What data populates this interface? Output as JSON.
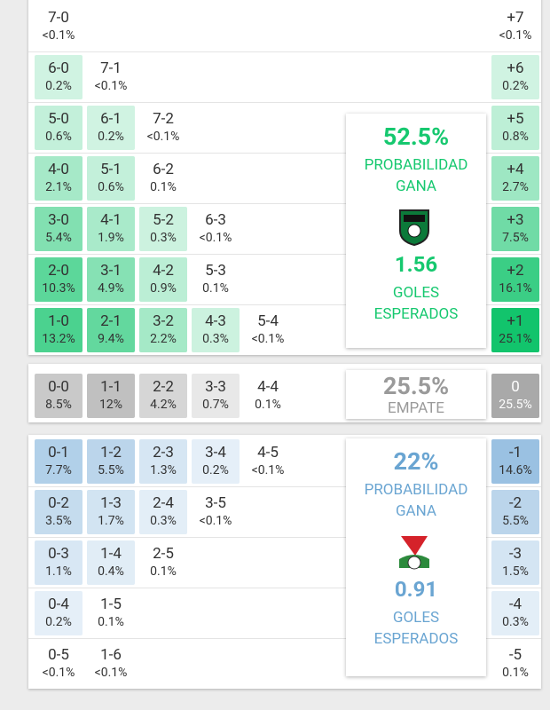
{
  "home": {
    "color": "#12c46c",
    "summary_color": "#16c86f",
    "rows": [
      {
        "cells": [
          {
            "score": "7-0",
            "prob": "<0.1%"
          }
        ],
        "margin": {
          "label": "+7",
          "prob": "<0.1%"
        }
      },
      {
        "cells": [
          {
            "score": "6-0",
            "prob": "0.2%"
          },
          {
            "score": "7-1",
            "prob": "<0.1%"
          }
        ],
        "margin": {
          "label": "+6",
          "prob": "0.2%"
        }
      },
      {
        "cells": [
          {
            "score": "5-0",
            "prob": "0.6%"
          },
          {
            "score": "6-1",
            "prob": "0.2%"
          },
          {
            "score": "7-2",
            "prob": "<0.1%"
          }
        ],
        "margin": {
          "label": "+5",
          "prob": "0.8%"
        }
      },
      {
        "cells": [
          {
            "score": "4-0",
            "prob": "2.1%"
          },
          {
            "score": "5-1",
            "prob": "0.6%"
          },
          {
            "score": "6-2",
            "prob": "0.1%"
          }
        ],
        "margin": {
          "label": "+4",
          "prob": "2.7%"
        }
      },
      {
        "cells": [
          {
            "score": "3-0",
            "prob": "5.4%"
          },
          {
            "score": "4-1",
            "prob": "1.9%"
          },
          {
            "score": "5-2",
            "prob": "0.3%"
          },
          {
            "score": "6-3",
            "prob": "<0.1%"
          }
        ],
        "margin": {
          "label": "+3",
          "prob": "7.5%"
        }
      },
      {
        "cells": [
          {
            "score": "2-0",
            "prob": "10.3%"
          },
          {
            "score": "3-1",
            "prob": "4.9%"
          },
          {
            "score": "4-2",
            "prob": "0.9%"
          },
          {
            "score": "5-3",
            "prob": "0.1%"
          }
        ],
        "margin": {
          "label": "+2",
          "prob": "16.1%"
        }
      },
      {
        "cells": [
          {
            "score": "1-0",
            "prob": "13.2%"
          },
          {
            "score": "2-1",
            "prob": "9.4%"
          },
          {
            "score": "3-2",
            "prob": "2.2%"
          },
          {
            "score": "4-3",
            "prob": "0.3%"
          },
          {
            "score": "5-4",
            "prob": "<0.1%"
          }
        ],
        "margin": {
          "label": "+1",
          "prob": "25.1%"
        }
      }
    ],
    "summary": {
      "pct": "52.5%",
      "label": "PROBABILIDAD GANA",
      "goals": "1.56",
      "goals_label": "GOLES ESPERADOS"
    }
  },
  "draw": {
    "color": "#a9a9a9",
    "summary_color": "#9a9a9a",
    "rows": [
      {
        "cells": [
          {
            "score": "0-0",
            "prob": "8.5%"
          },
          {
            "score": "1-1",
            "prob": "12%"
          },
          {
            "score": "2-2",
            "prob": "4.2%"
          },
          {
            "score": "3-3",
            "prob": "0.7%"
          },
          {
            "score": "4-4",
            "prob": "0.1%"
          }
        ],
        "margin": {
          "label": "0",
          "prob": "25.5%"
        }
      }
    ],
    "summary": {
      "pct": "25.5%",
      "label": "EMPATE"
    }
  },
  "away": {
    "color": "#7fb1da",
    "summary_color": "#6aa5d2",
    "rows": [
      {
        "cells": [
          {
            "score": "0-1",
            "prob": "7.7%"
          },
          {
            "score": "1-2",
            "prob": "5.5%"
          },
          {
            "score": "2-3",
            "prob": "1.3%"
          },
          {
            "score": "3-4",
            "prob": "0.2%"
          },
          {
            "score": "4-5",
            "prob": "<0.1%"
          }
        ],
        "margin": {
          "label": "-1",
          "prob": "14.6%"
        }
      },
      {
        "cells": [
          {
            "score": "0-2",
            "prob": "3.5%"
          },
          {
            "score": "1-3",
            "prob": "1.7%"
          },
          {
            "score": "2-4",
            "prob": "0.3%"
          },
          {
            "score": "3-5",
            "prob": "<0.1%"
          }
        ],
        "margin": {
          "label": "-2",
          "prob": "5.5%"
        }
      },
      {
        "cells": [
          {
            "score": "0-3",
            "prob": "1.1%"
          },
          {
            "score": "1-4",
            "prob": "0.4%"
          },
          {
            "score": "2-5",
            "prob": "0.1%"
          }
        ],
        "margin": {
          "label": "-3",
          "prob": "1.5%"
        }
      },
      {
        "cells": [
          {
            "score": "0-4",
            "prob": "0.2%"
          },
          {
            "score": "1-5",
            "prob": "0.1%"
          }
        ],
        "margin": {
          "label": "-4",
          "prob": "0.3%"
        }
      },
      {
        "cells": [
          {
            "score": "0-5",
            "prob": "<0.1%"
          },
          {
            "score": "1-6",
            "prob": "<0.1%"
          }
        ],
        "margin": {
          "label": "-5",
          "prob": "0.1%"
        }
      }
    ],
    "summary": {
      "pct": "22%",
      "label": "PROBABILIDAD GANA",
      "goals": "0.91",
      "goals_label": "GOLES ESPERADOS"
    }
  }
}
